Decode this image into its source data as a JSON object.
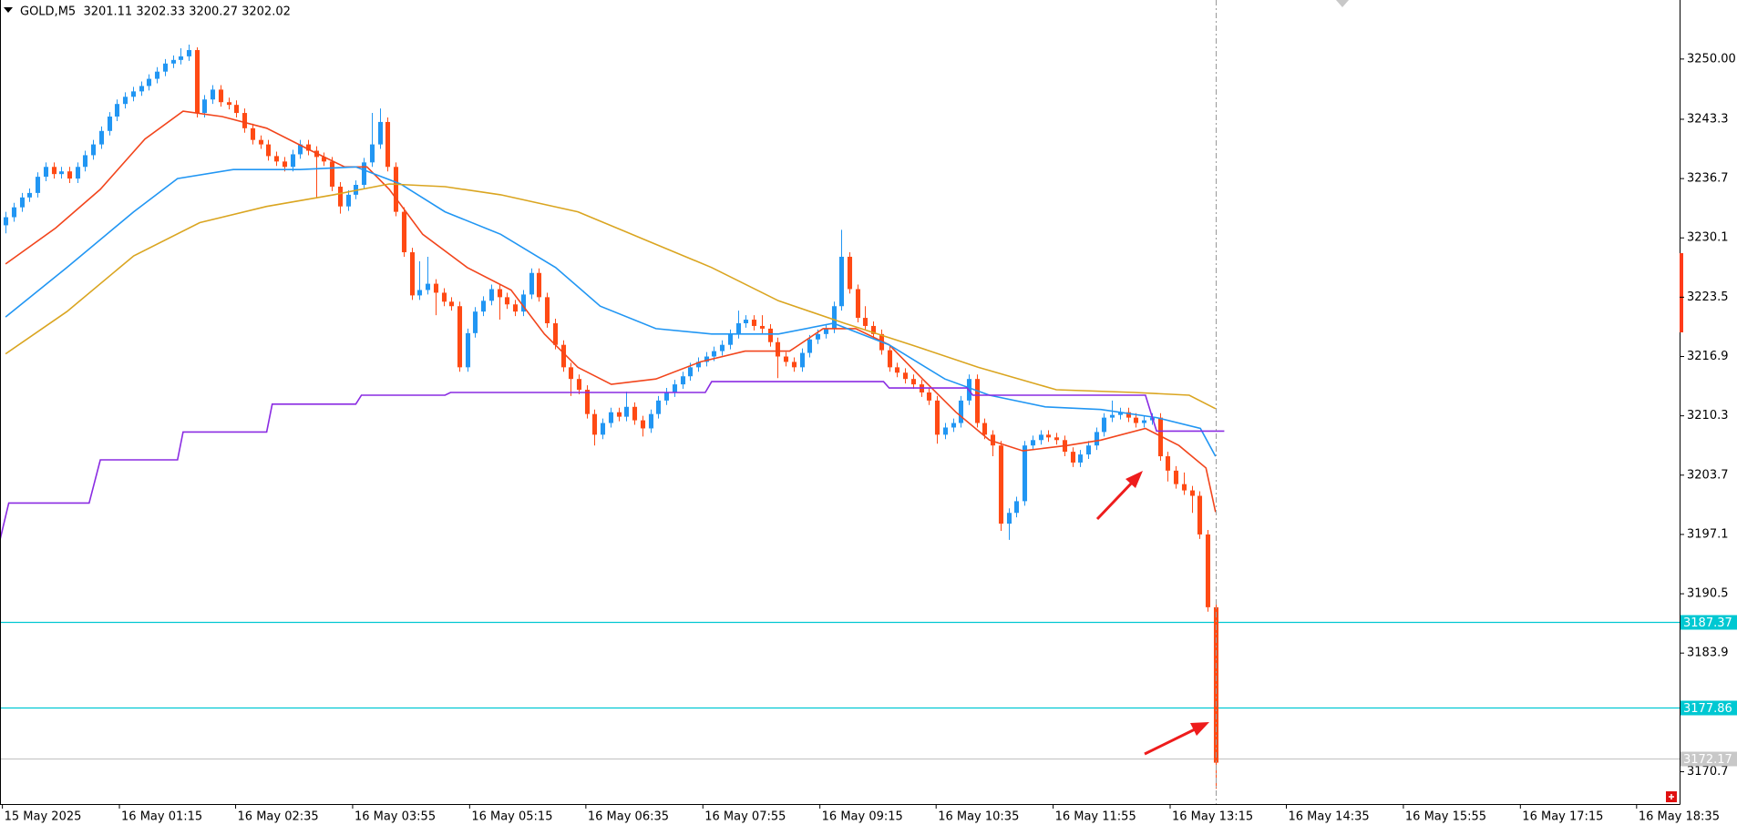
{
  "chart_data": {
    "type": "candlestick",
    "title": "GOLD,M5  3201.11 3202.33 3200.27 3202.02",
    "up_color": "#2196f3",
    "down_color": "#ff4a14",
    "open": [
      3231.5,
      3232.4,
      3233.5,
      3234.6,
      3235.1,
      3236.9,
      3238.0,
      3237.2,
      3237.5,
      3236.7,
      3238.0,
      3239.3,
      3240.5,
      3242.0,
      3243.6,
      3245.0,
      3245.8,
      3246.4,
      3247.0,
      3247.8,
      3248.6,
      3249.5,
      3249.9,
      3250.3,
      3251.0,
      3244.0,
      3245.5,
      3246.6,
      3245.2,
      3244.9,
      3244.0,
      3242.3,
      3241.0,
      3240.5,
      3239.2,
      3238.6,
      3238.0,
      3239.4,
      3240.5,
      3239.8,
      3239.1,
      3238.6,
      3235.8,
      3233.6,
      3234.9,
      3236.0,
      3238.5,
      3240.5,
      3243.0,
      3238.0,
      3233.0,
      3228.5,
      3223.7,
      3224.3,
      3225.0,
      3224.0,
      3223.0,
      3222.5,
      3215.7,
      3219.5,
      3221.9,
      3223.1,
      3224.4,
      3223.5,
      3222.7,
      3221.9,
      3223.8,
      3226.2,
      3223.5,
      3220.6,
      3218.2,
      3215.7,
      3214.4,
      3213.2,
      3210.5,
      3208.2,
      3209.5,
      3210.7,
      3210.2,
      3211.3,
      3209.8,
      3208.9,
      3210.5,
      3212.0,
      3212.9,
      3213.8,
      3214.7,
      3215.7,
      3216.3,
      3216.9,
      3217.5,
      3218.2,
      3219.4,
      3220.6,
      3221.0,
      3220.3,
      3220.0,
      3218.5,
      3216.9,
      3216.3,
      3215.7,
      3217.3,
      3218.8,
      3219.4,
      3220.0,
      3222.5,
      3228.0,
      3224.4,
      3221.2,
      3220.3,
      3219.4,
      3217.6,
      3215.7,
      3215.1,
      3214.4,
      3213.8,
      3212.9,
      3212.0,
      3208.2,
      3209.0,
      3209.5,
      3212.0,
      3214.4,
      3209.5,
      3208.2,
      3207.0,
      3198.3,
      3199.5,
      3200.8,
      3207.0,
      3207.6,
      3208.2,
      3207.9,
      3207.6,
      3206.3,
      3205.1,
      3206.0,
      3207.0,
      3208.5,
      3210.1,
      3210.4,
      3210.7,
      3210.1,
      3209.5,
      3209.8,
      3210.1,
      3205.8,
      3204.2,
      3202.7,
      3202.0,
      3201.4,
      3197.1,
      3189.0
    ],
    "high": [
      3233.0,
      3234.0,
      3235.1,
      3235.6,
      3237.4,
      3238.5,
      3238.5,
      3238.0,
      3238.0,
      3238.5,
      3239.8,
      3241.0,
      3242.5,
      3244.1,
      3245.5,
      3246.3,
      3246.9,
      3247.5,
      3248.3,
      3249.1,
      3250.0,
      3250.4,
      3251.2,
      3251.6,
      3251.3,
      3246.0,
      3247.1,
      3247.1,
      3245.7,
      3245.4,
      3244.5,
      3242.8,
      3241.5,
      3241.0,
      3239.7,
      3239.1,
      3239.9,
      3241.0,
      3241.0,
      3240.3,
      3239.6,
      3239.1,
      3236.3,
      3235.4,
      3236.5,
      3239.0,
      3244.0,
      3244.5,
      3243.5,
      3238.5,
      3233.5,
      3229.0,
      3227.5,
      3228.0,
      3225.5,
      3224.5,
      3223.5,
      3223.0,
      3220.0,
      3222.4,
      3223.6,
      3224.9,
      3224.9,
      3224.0,
      3223.2,
      3224.3,
      3226.7,
      3226.7,
      3224.0,
      3221.1,
      3218.7,
      3216.2,
      3214.9,
      3213.7,
      3211.0,
      3210.0,
      3211.2,
      3211.2,
      3213.0,
      3211.8,
      3210.3,
      3211.0,
      3212.5,
      3213.4,
      3214.3,
      3215.2,
      3216.2,
      3216.8,
      3217.4,
      3218.0,
      3218.7,
      3219.9,
      3222.0,
      3221.5,
      3221.5,
      3221.5,
      3220.5,
      3219.0,
      3217.4,
      3216.8,
      3217.8,
      3219.3,
      3219.9,
      3220.5,
      3223.0,
      3231.0,
      3228.5,
      3224.9,
      3222.5,
      3220.8,
      3219.9,
      3218.1,
      3216.2,
      3215.6,
      3214.9,
      3214.3,
      3213.4,
      3212.5,
      3209.5,
      3210.0,
      3212.5,
      3214.9,
      3214.9,
      3210.0,
      3208.7,
      3207.5,
      3200.0,
      3201.3,
      3207.5,
      3208.1,
      3208.7,
      3208.7,
      3208.4,
      3208.1,
      3206.8,
      3206.5,
      3207.5,
      3209.0,
      3210.6,
      3212.0,
      3211.2,
      3211.2,
      3210.6,
      3210.3,
      3210.6,
      3210.6,
      3206.3,
      3204.7,
      3204.0,
      3202.5,
      3201.9,
      3197.6,
      3189.5
    ],
    "low": [
      3230.6,
      3231.9,
      3233.0,
      3234.1,
      3234.6,
      3236.4,
      3236.7,
      3236.7,
      3236.2,
      3236.2,
      3237.5,
      3238.8,
      3240.0,
      3241.5,
      3243.1,
      3244.5,
      3245.3,
      3245.9,
      3246.5,
      3247.3,
      3248.1,
      3249.0,
      3249.4,
      3249.8,
      3243.5,
      3243.5,
      3245.0,
      3244.7,
      3244.4,
      3243.5,
      3241.8,
      3240.5,
      3240.0,
      3238.7,
      3238.1,
      3237.5,
      3237.5,
      3238.9,
      3239.3,
      3234.5,
      3238.1,
      3235.3,
      3232.8,
      3233.1,
      3234.4,
      3235.5,
      3238.0,
      3240.0,
      3237.5,
      3232.5,
      3228.0,
      3223.2,
      3223.2,
      3223.8,
      3221.5,
      3222.5,
      3222.0,
      3215.2,
      3215.2,
      3219.0,
      3221.4,
      3222.6,
      3221.0,
      3222.2,
      3221.4,
      3221.4,
      3223.3,
      3223.0,
      3220.1,
      3217.7,
      3215.2,
      3212.5,
      3212.7,
      3210.0,
      3207.0,
      3207.7,
      3209.0,
      3209.7,
      3209.7,
      3209.3,
      3208.0,
      3208.4,
      3210.0,
      3211.5,
      3212.4,
      3213.3,
      3214.2,
      3215.2,
      3215.8,
      3216.4,
      3217.0,
      3217.7,
      3218.9,
      3220.1,
      3219.8,
      3219.5,
      3218.0,
      3214.5,
      3215.8,
      3215.2,
      3215.2,
      3216.8,
      3218.3,
      3218.9,
      3219.5,
      3222.0,
      3223.9,
      3220.7,
      3219.8,
      3218.9,
      3217.1,
      3215.2,
      3214.6,
      3213.9,
      3213.3,
      3212.4,
      3211.5,
      3207.2,
      3207.7,
      3208.5,
      3209.0,
      3211.5,
      3209.0,
      3207.7,
      3205.8,
      3197.5,
      3196.5,
      3199.0,
      3200.3,
      3206.5,
      3207.1,
      3207.4,
      3207.1,
      3205.8,
      3204.6,
      3204.6,
      3205.5,
      3206.5,
      3208.0,
      3209.6,
      3209.9,
      3209.6,
      3209.0,
      3209.0,
      3209.3,
      3205.3,
      3203.0,
      3202.2,
      3201.5,
      3199.5,
      3196.6,
      3188.5,
      3168.8
    ],
    "close": [
      3232.4,
      3233.5,
      3234.6,
      3235.1,
      3236.9,
      3238.0,
      3237.2,
      3237.5,
      3236.7,
      3238.0,
      3239.3,
      3240.5,
      3242.0,
      3243.6,
      3245.0,
      3245.8,
      3246.4,
      3247.0,
      3247.8,
      3248.6,
      3249.5,
      3249.9,
      3250.3,
      3251.0,
      3244.0,
      3245.5,
      3246.6,
      3245.2,
      3244.9,
      3244.0,
      3242.3,
      3241.0,
      3240.5,
      3239.2,
      3238.6,
      3238.0,
      3239.4,
      3240.5,
      3239.8,
      3239.1,
      3238.6,
      3235.8,
      3233.6,
      3234.9,
      3236.0,
      3238.5,
      3240.5,
      3243.0,
      3238.0,
      3233.0,
      3228.5,
      3223.7,
      3224.3,
      3225.0,
      3224.0,
      3223.0,
      3222.5,
      3215.7,
      3219.5,
      3221.9,
      3223.1,
      3224.4,
      3223.5,
      3222.7,
      3221.9,
      3223.8,
      3226.2,
      3223.5,
      3220.6,
      3218.2,
      3215.7,
      3214.4,
      3213.2,
      3210.5,
      3208.2,
      3209.5,
      3210.7,
      3210.2,
      3211.3,
      3209.8,
      3208.9,
      3210.5,
      3212.0,
      3212.9,
      3213.8,
      3214.7,
      3215.7,
      3216.3,
      3216.9,
      3217.5,
      3218.2,
      3219.4,
      3220.6,
      3221.0,
      3220.3,
      3220.0,
      3218.5,
      3216.9,
      3216.3,
      3215.7,
      3217.3,
      3218.8,
      3219.4,
      3220.0,
      3222.5,
      3228.0,
      3224.4,
      3221.2,
      3220.3,
      3219.4,
      3217.6,
      3215.7,
      3215.1,
      3214.4,
      3213.8,
      3212.9,
      3212.0,
      3208.2,
      3209.0,
      3209.5,
      3212.0,
      3214.4,
      3209.5,
      3208.2,
      3207.0,
      3198.3,
      3199.5,
      3200.8,
      3207.0,
      3207.6,
      3208.2,
      3207.9,
      3207.6,
      3206.3,
      3205.1,
      3206.0,
      3207.0,
      3208.5,
      3210.1,
      3210.4,
      3210.7,
      3210.1,
      3209.5,
      3209.8,
      3210.1,
      3205.8,
      3204.2,
      3202.7,
      3202.0,
      3201.4,
      3197.1,
      3189.0,
      3171.7
    ],
    "indicators": [
      {
        "color": "#f2451c",
        "x": [
          0,
          6.3,
          11.9,
          17.5,
          22.3,
          27.2,
          32.8,
          38.4,
          42.6,
          45.4,
          48.2,
          52.4,
          58,
          63.5,
          67.7,
          71.9,
          76.1,
          81.7,
          87.3,
          92.9,
          98.5,
          102.7,
          106.8,
          111,
          115.2,
          119.4,
          123.6,
          127.8,
          133.4,
          137.6,
          143.2,
          147.4,
          150.8,
          152
        ],
        "values": [
          3227.2,
          3231.2,
          3235.5,
          3241.1,
          3244.2,
          3243.6,
          3242.3,
          3239.8,
          3238,
          3238,
          3235.5,
          3230.5,
          3226.8,
          3224.3,
          3219.4,
          3215.7,
          3213.8,
          3214.4,
          3216.3,
          3217.5,
          3217.5,
          3220,
          3220,
          3218.2,
          3214.4,
          3210.7,
          3207.6,
          3206.4,
          3207,
          3207.6,
          3208.9,
          3207,
          3204.5,
          3199.6
        ]
      },
      {
        "color": "#2196f3",
        "x": [
          0,
          7.7,
          16.1,
          21.6,
          28.6,
          37,
          44,
          49.6,
          55.2,
          62.2,
          69.1,
          74.7,
          81.7,
          88.7,
          97.1,
          104,
          111,
          118,
          123.6,
          130.6,
          137.6,
          144.6,
          150.1,
          152
        ],
        "values": [
          3221.3,
          3226.8,
          3233,
          3236.7,
          3237.7,
          3237.7,
          3238,
          3236.1,
          3233,
          3230.5,
          3226.8,
          3222.5,
          3220,
          3219.4,
          3219.4,
          3220.6,
          3218.2,
          3214.4,
          3212.6,
          3211.3,
          3211,
          3210.1,
          3208.9,
          3205.8
        ]
      },
      {
        "color": "#daa520",
        "x": [
          0,
          7.7,
          16.1,
          24.4,
          32.8,
          41.2,
          48.2,
          55.2,
          62.2,
          71.9,
          80.3,
          88.7,
          97.1,
          105.4,
          113.8,
          122.2,
          132,
          141.8,
          148.7,
          152
        ],
        "values": [
          3217.2,
          3221.9,
          3228.1,
          3231.8,
          3233.6,
          3234.9,
          3236.1,
          3235.8,
          3234.9,
          3233,
          3229.9,
          3226.8,
          3223.1,
          3220.6,
          3218.2,
          3215.7,
          3213.2,
          3212.9,
          3212.6,
          3211.1
        ]
      },
      {
        "color": "#8a2be2",
        "x": [
          -0.7,
          0.4,
          10.5,
          11.9,
          21.6,
          22.3,
          32.8,
          33.5,
          44,
          44.7,
          55.2,
          55.9,
          87.9,
          88.7,
          110.3,
          111,
          120.8,
          121.5,
          143.2,
          144.6,
          153.1
        ],
        "values": [
          3196.5,
          3200.6,
          3200.6,
          3205.4,
          3205.4,
          3208.5,
          3208.5,
          3211.6,
          3211.6,
          3212.6,
          3212.6,
          3212.9,
          3212.9,
          3214.1,
          3214.1,
          3213.4,
          3213.4,
          3212.6,
          3212.6,
          3208.6,
          3208.6
        ]
      }
    ],
    "levels": [
      {
        "value": 3187.37,
        "color": "#00c8d2"
      },
      {
        "value": 3177.86,
        "color": "#00c8d2"
      },
      {
        "value": 3172.17,
        "color": "#c8c8c8"
      }
    ],
    "ylim": [
      3167.1,
      3256.57
    ],
    "yticks": [
      {
        "value": 3250,
        "label": "3250.00"
      },
      3243.3,
      3236.7,
      3230.1,
      3223.5,
      3216.9,
      3210.3,
      3203.7,
      3197.1,
      3190.5,
      3183.9,
      3170.7
    ],
    "xlim": [
      -0.7,
      210.3
    ],
    "xticks": [
      {
        "value": -0.4,
        "label": "15 May 2025"
      },
      {
        "value": 14.3,
        "label": "16 May 01:15"
      },
      {
        "value": 28.9,
        "label": "16 May 02:35"
      },
      {
        "value": 43.6,
        "label": "16 May 03:55"
      },
      {
        "value": 58.3,
        "label": "16 May 05:15"
      },
      {
        "value": 72.9,
        "label": "16 May 06:35"
      },
      {
        "value": 87.6,
        "label": "16 May 07:55"
      },
      {
        "value": 102.3,
        "label": "16 May 09:15"
      },
      {
        "value": 116.9,
        "label": "16 May 10:35"
      },
      {
        "value": 131.6,
        "label": "16 May 11:55"
      },
      {
        "value": 146.3,
        "label": "16 May 13:15"
      },
      {
        "value": 160.9,
        "label": "16 May 14:35"
      },
      {
        "value": 175.6,
        "label": "16 May 15:55"
      },
      {
        "value": 190.3,
        "label": "16 May 17:15"
      },
      {
        "value": 204.9,
        "label": "16 May 18:35"
      }
    ]
  }
}
